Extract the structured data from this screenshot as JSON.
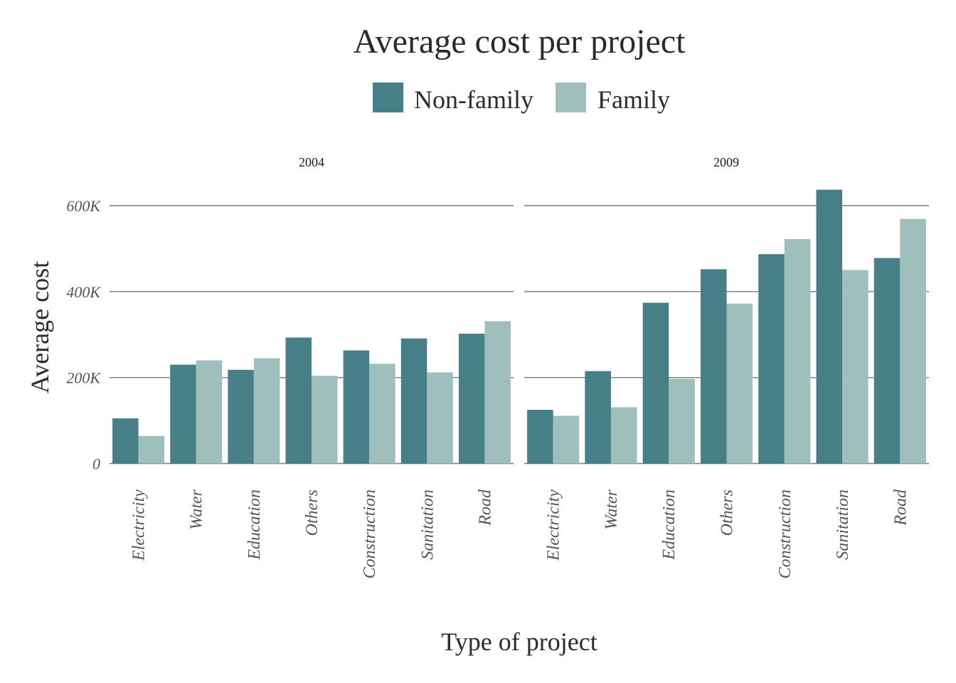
{
  "chart_data": {
    "type": "bar",
    "title": "Average cost per project",
    "xlabel": "Type of project",
    "ylabel": "Average cost",
    "ylim": [
      0,
      640000
    ],
    "yticks": [
      {
        "value": 0,
        "label": "0"
      },
      {
        "value": 200000,
        "label": "200K"
      },
      {
        "value": 400000,
        "label": "400K"
      },
      {
        "value": 600000,
        "label": "600K"
      }
    ],
    "grid": true,
    "legend_position": "top",
    "categories": [
      "Electricity",
      "Water",
      "Education",
      "Others",
      "Construction",
      "Sanitation",
      "Road"
    ],
    "series_names": [
      "Non-family",
      "Family"
    ],
    "series_colors": [
      "#467f87",
      "#9ebfbc"
    ],
    "facets": [
      {
        "label": "2004",
        "series": [
          {
            "name": "Non-family",
            "values": [
              105000,
              230000,
              218000,
              293000,
              263000,
              291000,
              302000
            ]
          },
          {
            "name": "Family",
            "values": [
              64000,
              240000,
              245000,
              204000,
              232000,
              212000,
              331000
            ]
          }
        ]
      },
      {
        "label": "2009",
        "series": [
          {
            "name": "Non-family",
            "values": [
              125000,
              215000,
              374000,
              452000,
              487000,
              637000,
              478000
            ]
          },
          {
            "name": "Family",
            "values": [
              111000,
              131000,
              197000,
              372000,
              522000,
              450000,
              569000
            ]
          }
        ]
      }
    ]
  }
}
